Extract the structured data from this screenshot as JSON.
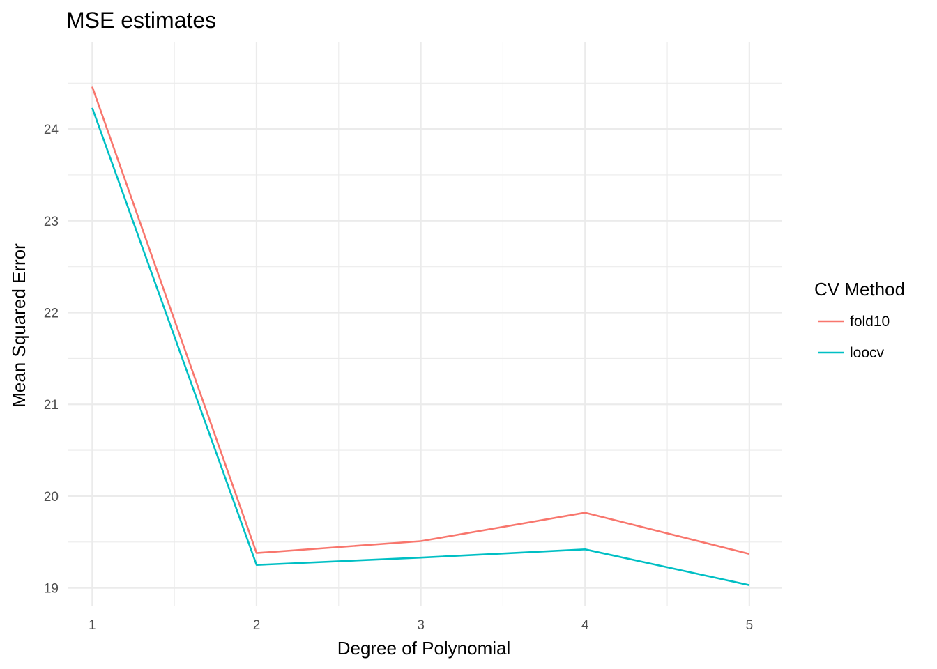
{
  "chart_data": {
    "type": "line",
    "title": "MSE estimates",
    "xlabel": "Degree of Polynomial",
    "ylabel": "Mean Squared Error",
    "x": [
      1,
      2,
      3,
      4,
      5
    ],
    "xlim": [
      0.85,
      5.2
    ],
    "ylim": [
      18.8,
      24.95
    ],
    "xticks": [
      1,
      2,
      3,
      4,
      5
    ],
    "yticks": [
      19,
      20,
      21,
      22,
      23,
      24
    ],
    "grid": true,
    "legend": {
      "title": "CV Method",
      "position": "right"
    },
    "series": [
      {
        "name": "fold10",
        "color": "#F8766D",
        "values": [
          24.46,
          19.38,
          19.51,
          19.82,
          19.37
        ]
      },
      {
        "name": "loocv",
        "color": "#00BFC4",
        "values": [
          24.23,
          19.25,
          19.33,
          19.42,
          19.03
        ]
      }
    ]
  }
}
